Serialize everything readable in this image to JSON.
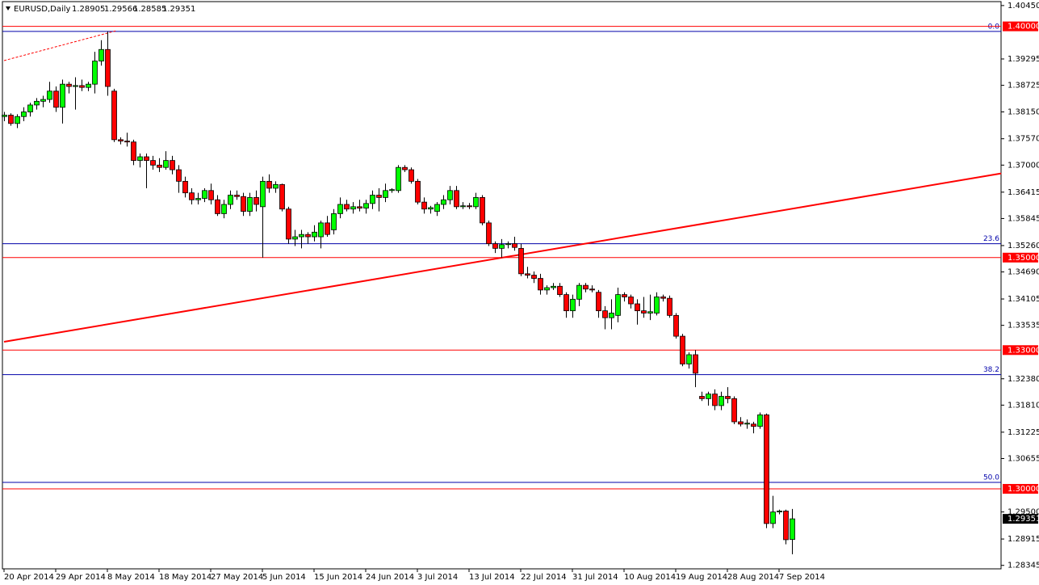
{
  "chart_data": {
    "type": "candlestick",
    "title": "EURUSD,Daily",
    "categories": [
      "20 Apr 2014",
      null,
      null,
      null,
      null,
      null,
      null,
      null,
      "29 Apr 2014",
      null,
      null,
      null,
      null,
      null,
      null,
      null,
      "8 May 2014",
      null,
      null,
      null,
      null,
      null,
      null,
      null,
      "18 May 2014",
      null,
      null,
      null,
      null,
      null,
      null,
      null,
      "27 May 2014",
      null,
      null,
      null,
      null,
      null,
      null,
      null,
      "5 Jun 2014",
      null,
      null,
      null,
      null,
      null,
      null,
      null,
      "15 Jun 2014",
      null,
      null,
      null,
      null,
      null,
      null,
      null,
      "24 Jun 2014",
      null,
      null,
      null,
      null,
      null,
      null,
      null,
      "3 Jul 2014",
      null,
      null,
      null,
      null,
      null,
      null,
      null,
      "13 Jul 2014",
      null,
      null,
      null,
      null,
      null,
      null,
      null,
      "22 Jul 2014",
      null,
      null,
      null,
      null,
      null,
      null,
      null,
      "31 Jul 2014",
      null,
      null,
      null,
      null,
      null,
      null,
      null,
      "10 Aug 2014",
      null,
      null,
      null,
      null,
      null,
      null,
      null,
      "19 Aug 2014",
      null,
      null,
      null,
      null,
      null,
      null,
      null,
      "28 Aug 2014",
      null,
      null,
      null,
      null,
      null,
      null,
      null,
      "7 Sep 2014",
      null,
      null
    ],
    "open": [
      1.3805,
      1.3808,
      1.379,
      1.3805,
      1.3815,
      1.383,
      1.3838,
      1.3842,
      1.386,
      1.3825,
      1.3875,
      1.387,
      1.3872,
      1.3868,
      1.3875,
      1.3925,
      1.395,
      1.386,
      1.3755,
      1.3752,
      1.375,
      1.371,
      1.3718,
      1.371,
      1.37,
      1.3695,
      1.371,
      1.369,
      1.3665,
      1.364,
      1.3625,
      1.3628,
      1.3645,
      1.3625,
      1.3595,
      1.3615,
      1.3635,
      1.3632,
      1.36,
      1.363,
      1.361,
      1.3665,
      1.365,
      1.3658,
      1.3605,
      1.354,
      1.3545,
      1.355,
      1.3545,
      1.3545,
      1.3575,
      1.356,
      1.3595,
      1.3615,
      1.3605,
      1.361,
      1.3607,
      1.3617,
      1.3635,
      1.363,
      1.3645,
      1.3645,
      1.3695,
      1.369,
      1.3665,
      1.362,
      1.3605,
      1.36,
      1.3615,
      1.3625,
      1.3645,
      1.361,
      1.3612,
      1.361,
      1.363,
      1.3575,
      1.353,
      1.352,
      1.3528,
      1.353,
      1.352,
      1.3465,
      1.3462,
      1.3455,
      1.343,
      1.3435,
      1.3438,
      1.342,
      1.3385,
      1.341,
      1.344,
      1.3432,
      1.3425,
      1.3385,
      1.337,
      1.3375,
      1.342,
      1.3415,
      1.34,
      1.3385,
      1.338,
      1.338,
      1.3415,
      1.3412,
      1.3375,
      1.333,
      1.327,
      1.329,
      1.32,
      1.3195,
      1.3205,
      1.318,
      1.32,
      1.3195,
      1.3145,
      1.314,
      1.314,
      1.3135,
      1.316,
      1.2925,
      1.295,
      1.2952,
      1.28905
    ],
    "high": [
      1.3815,
      1.3812,
      1.381,
      1.3825,
      1.3835,
      1.3845,
      1.385,
      1.388,
      1.387,
      1.3885,
      1.388,
      1.389,
      1.3885,
      1.388,
      1.3945,
      1.397,
      1.3989,
      1.3865,
      1.376,
      1.377,
      1.3755,
      1.3725,
      1.3725,
      1.372,
      1.3715,
      1.373,
      1.372,
      1.37,
      1.3675,
      1.365,
      1.364,
      1.365,
      1.366,
      1.3635,
      1.3625,
      1.3645,
      1.3645,
      1.364,
      1.364,
      1.3645,
      1.3675,
      1.368,
      1.3665,
      1.366,
      1.361,
      1.356,
      1.356,
      1.3555,
      1.357,
      1.358,
      1.359,
      1.3605,
      1.363,
      1.3625,
      1.362,
      1.3625,
      1.3625,
      1.3645,
      1.365,
      1.366,
      1.365,
      1.37,
      1.37,
      1.3695,
      1.367,
      1.363,
      1.3612,
      1.362,
      1.3635,
      1.3655,
      1.3655,
      1.362,
      1.3618,
      1.364,
      1.3635,
      1.358,
      1.3535,
      1.354,
      1.3535,
      1.3545,
      1.353,
      1.348,
      1.347,
      1.3465,
      1.344,
      1.3445,
      1.3445,
      1.3425,
      1.342,
      1.3445,
      1.3445,
      1.344,
      1.343,
      1.3395,
      1.341,
      1.3435,
      1.3425,
      1.342,
      1.341,
      1.3415,
      1.342,
      1.3425,
      1.342,
      1.3418,
      1.338,
      1.3335,
      1.3295,
      1.33,
      1.321,
      1.321,
      1.3215,
      1.321,
      1.322,
      1.32,
      1.3155,
      1.315,
      1.3145,
      1.3165,
      1.3163,
      1.2985,
      1.2955,
      1.2955,
      1.29566
    ],
    "low": [
      1.3795,
      1.3785,
      1.378,
      1.3795,
      1.3805,
      1.382,
      1.3825,
      1.3835,
      1.3815,
      1.379,
      1.3855,
      1.382,
      1.386,
      1.386,
      1.3855,
      1.3915,
      1.385,
      1.375,
      1.3745,
      1.374,
      1.37,
      1.3695,
      1.365,
      1.369,
      1.3685,
      1.369,
      1.368,
      1.364,
      1.363,
      1.3615,
      1.3615,
      1.362,
      1.3615,
      1.359,
      1.3585,
      1.3605,
      1.3625,
      1.359,
      1.359,
      1.36,
      1.35,
      1.364,
      1.364,
      1.36,
      1.353,
      1.3525,
      1.352,
      1.353,
      1.3535,
      1.352,
      1.3545,
      1.355,
      1.3585,
      1.36,
      1.3595,
      1.36,
      1.3595,
      1.3605,
      1.36,
      1.362,
      1.364,
      1.364,
      1.3685,
      1.366,
      1.3615,
      1.3595,
      1.3595,
      1.359,
      1.3605,
      1.3615,
      1.3605,
      1.3605,
      1.3605,
      1.3605,
      1.357,
      1.3525,
      1.351,
      1.35,
      1.352,
      1.3515,
      1.346,
      1.3455,
      1.3445,
      1.342,
      1.342,
      1.343,
      1.3415,
      1.337,
      1.337,
      1.3395,
      1.3425,
      1.3425,
      1.337,
      1.3345,
      1.3345,
      1.336,
      1.3405,
      1.339,
      1.3355,
      1.337,
      1.3365,
      1.3375,
      1.3405,
      1.337,
      1.3325,
      1.3265,
      1.326,
      1.322,
      1.319,
      1.318,
      1.317,
      1.317,
      1.3185,
      1.314,
      1.3135,
      1.313,
      1.312,
      1.313,
      1.2915,
      1.2915,
      1.2945,
      1.288,
      1.28585
    ],
    "close": [
      1.3808,
      1.379,
      1.3805,
      1.3815,
      1.383,
      1.3838,
      1.3842,
      1.386,
      1.3825,
      1.3875,
      1.387,
      1.3872,
      1.3868,
      1.3875,
      1.3925,
      1.395,
      1.387,
      1.3755,
      1.3752,
      1.375,
      1.371,
      1.3718,
      1.371,
      1.37,
      1.3695,
      1.371,
      1.369,
      1.3665,
      1.364,
      1.3625,
      1.3628,
      1.3645,
      1.3625,
      1.3595,
      1.3615,
      1.3635,
      1.3632,
      1.36,
      1.363,
      1.3615,
      1.3665,
      1.365,
      1.3658,
      1.3605,
      1.354,
      1.3545,
      1.355,
      1.3545,
      1.3555,
      1.3575,
      1.355,
      1.3595,
      1.3615,
      1.3605,
      1.361,
      1.3607,
      1.3617,
      1.3635,
      1.363,
      1.3645,
      1.3647,
      1.3695,
      1.369,
      1.3665,
      1.362,
      1.3605,
      1.3608,
      1.3615,
      1.3625,
      1.3645,
      1.361,
      1.3612,
      1.361,
      1.363,
      1.3575,
      1.353,
      1.352,
      1.3528,
      1.353,
      1.3522,
      1.3465,
      1.3462,
      1.3455,
      1.343,
      1.3435,
      1.3438,
      1.342,
      1.3385,
      1.341,
      1.344,
      1.3432,
      1.343,
      1.3385,
      1.337,
      1.338,
      1.342,
      1.3415,
      1.34,
      1.3385,
      1.338,
      1.3383,
      1.3415,
      1.3412,
      1.3375,
      1.333,
      1.327,
      1.329,
      1.325,
      1.3195,
      1.3205,
      1.318,
      1.32,
      1.3195,
      1.3145,
      1.314,
      1.3142,
      1.3135,
      1.316,
      1.2925,
      1.295,
      1.2952,
      1.289,
      1.29351
    ],
    "up_color": "#00ff00",
    "down_color": "#ff0000",
    "ylim": [
      1.2827,
      1.4057
    ],
    "yticks": [
      {
        "value": 1.4045,
        "label": "1.40450"
      },
      {
        "value": 1.39295,
        "label": "1.39295"
      },
      {
        "value": 1.38725,
        "label": "1.38725"
      },
      {
        "value": 1.3815,
        "label": "1.38150"
      },
      {
        "value": 1.3757,
        "label": "1.37570"
      },
      {
        "value": 1.37,
        "label": "1.37000"
      },
      {
        "value": 1.36415,
        "label": "1.36415"
      },
      {
        "value": 1.35845,
        "label": "1.35845"
      },
      {
        "value": 1.3526,
        "label": "1.35260"
      },
      {
        "value": 1.3469,
        "label": "1.34690"
      },
      {
        "value": 1.34105,
        "label": "1.34105"
      },
      {
        "value": 1.33535,
        "label": "1.33535"
      },
      {
        "value": 1.3238,
        "label": "1.32380"
      },
      {
        "value": 1.3181,
        "label": "1.31810"
      },
      {
        "value": 1.31225,
        "label": "1.31225"
      },
      {
        "value": 1.30655,
        "label": "1.30655"
      },
      {
        "value": 1.295,
        "label": "1.29500"
      },
      {
        "value": 1.28915,
        "label": "1.28915"
      },
      {
        "value": 1.28345,
        "label": "1.28345"
      }
    ],
    "levels": [
      {
        "value": 1.4,
        "label": "1.40000"
      },
      {
        "value": 1.35,
        "label": "1.35000"
      },
      {
        "value": 1.33,
        "label": "1.33000"
      },
      {
        "value": 1.3,
        "label": "1.30000"
      }
    ],
    "level_color": "#ff0000",
    "fib_levels": [
      {
        "label": "0.0",
        "price": 1.3989
      },
      {
        "label": "23.6",
        "price": 1.353
      },
      {
        "label": "38.2",
        "price": 1.3247
      },
      {
        "label": "50.0",
        "price": 1.3014
      }
    ],
    "fib_color": "#0000aa",
    "trendline": {
      "x": [
        0,
        154.4
      ],
      "y": [
        1.3318,
        1.3682
      ]
    },
    "dashed_line": {
      "x": [
        0,
        17.5
      ],
      "y": [
        1.3926,
        1.3991
      ]
    }
  }
}
